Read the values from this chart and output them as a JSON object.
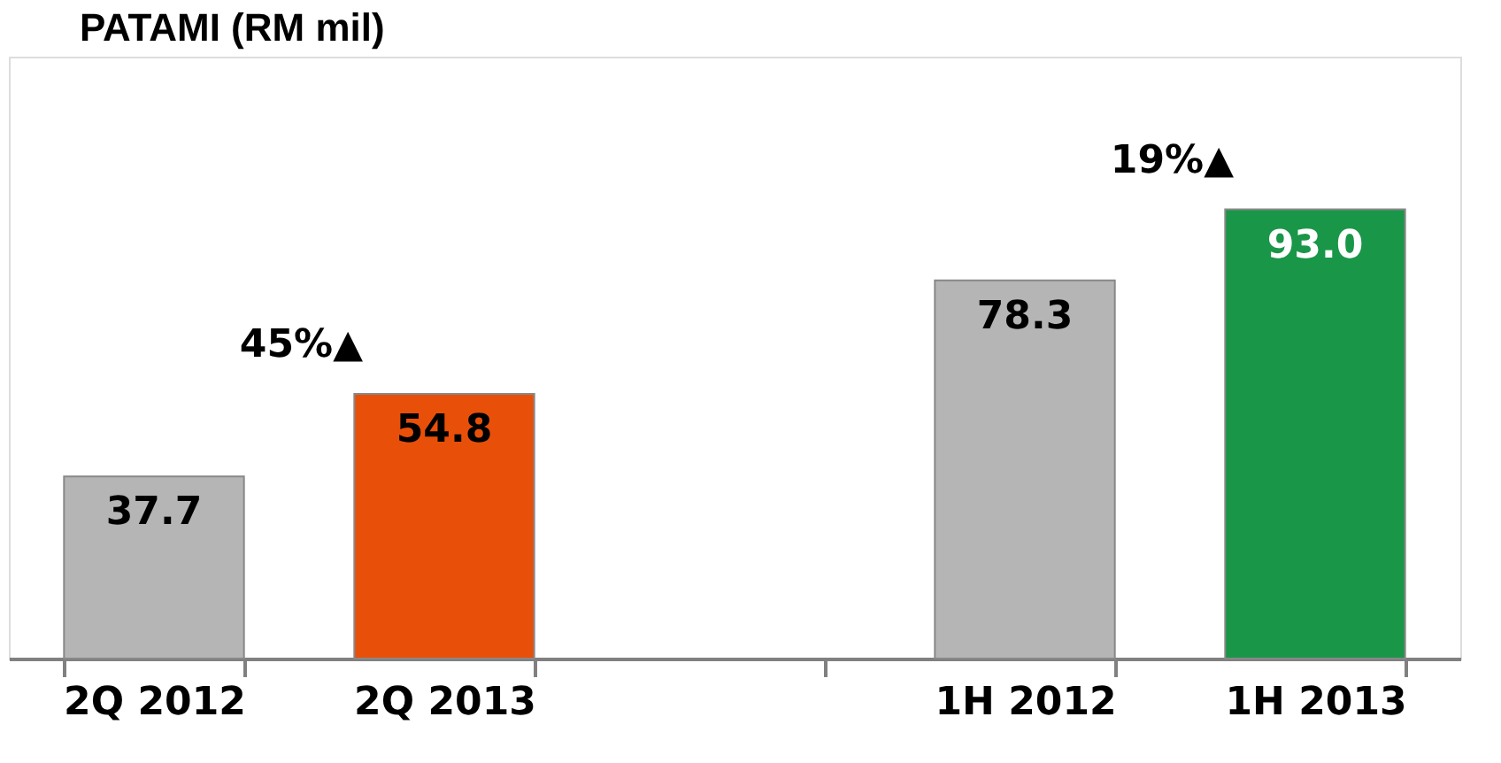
{
  "chart_data": {
    "type": "bar",
    "title": "PATAMI (RM mil)",
    "categories": [
      "2Q 2012",
      "2Q 2013",
      null,
      "1H 2012",
      "1H 2013"
    ],
    "values": [
      37.7,
      54.8,
      null,
      78.3,
      93.0
    ],
    "colors": [
      "#b5b5b5",
      "#e8500a",
      "#b5b5b5",
      "#b5b5b5",
      "#1a9648"
    ],
    "value_labels": [
      "37.7",
      "54.8",
      null,
      "78.3",
      "93.0"
    ],
    "annotations": [
      "45%▲",
      "19%▲"
    ],
    "grid": false
  }
}
